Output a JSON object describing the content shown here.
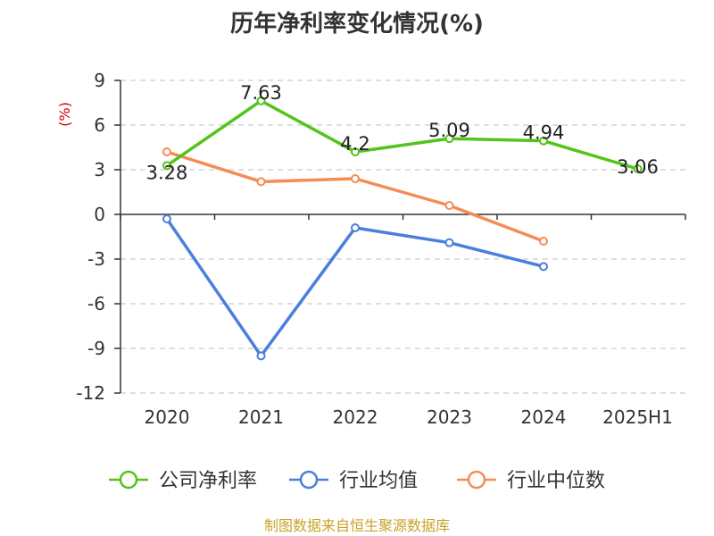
{
  "chart_data": {
    "type": "line",
    "title": "历年净利率变化情况(%)",
    "ylabel": "(%)",
    "xlabel": "",
    "categories": [
      "2020",
      "2021",
      "2022",
      "2023",
      "2024",
      "2025H1"
    ],
    "ylim": [
      -12,
      9
    ],
    "yticks": [
      9,
      6,
      3,
      0,
      -3,
      -6,
      -9,
      -12
    ],
    "grid": "dashed horizontal",
    "legend_position": "bottom",
    "series": [
      {
        "name": "公司净利率",
        "color": "#52c41a",
        "values": [
          3.28,
          7.63,
          4.2,
          5.09,
          4.94,
          3.06
        ],
        "labels": [
          "3.28",
          "7.63",
          "4.2",
          "5.09",
          "4.94",
          "3.06"
        ],
        "show_labels": true
      },
      {
        "name": "行业均值",
        "color": "#4a7fdd",
        "values": [
          -0.3,
          -9.5,
          -0.9,
          -1.9,
          -3.5,
          null
        ],
        "show_labels": false
      },
      {
        "name": "行业中位数",
        "color": "#f58c54",
        "values": [
          4.2,
          2.2,
          2.4,
          0.6,
          -1.8,
          null
        ],
        "show_labels": false
      }
    ]
  },
  "footer": {
    "source": "制图数据来自恒生聚源数据库"
  }
}
